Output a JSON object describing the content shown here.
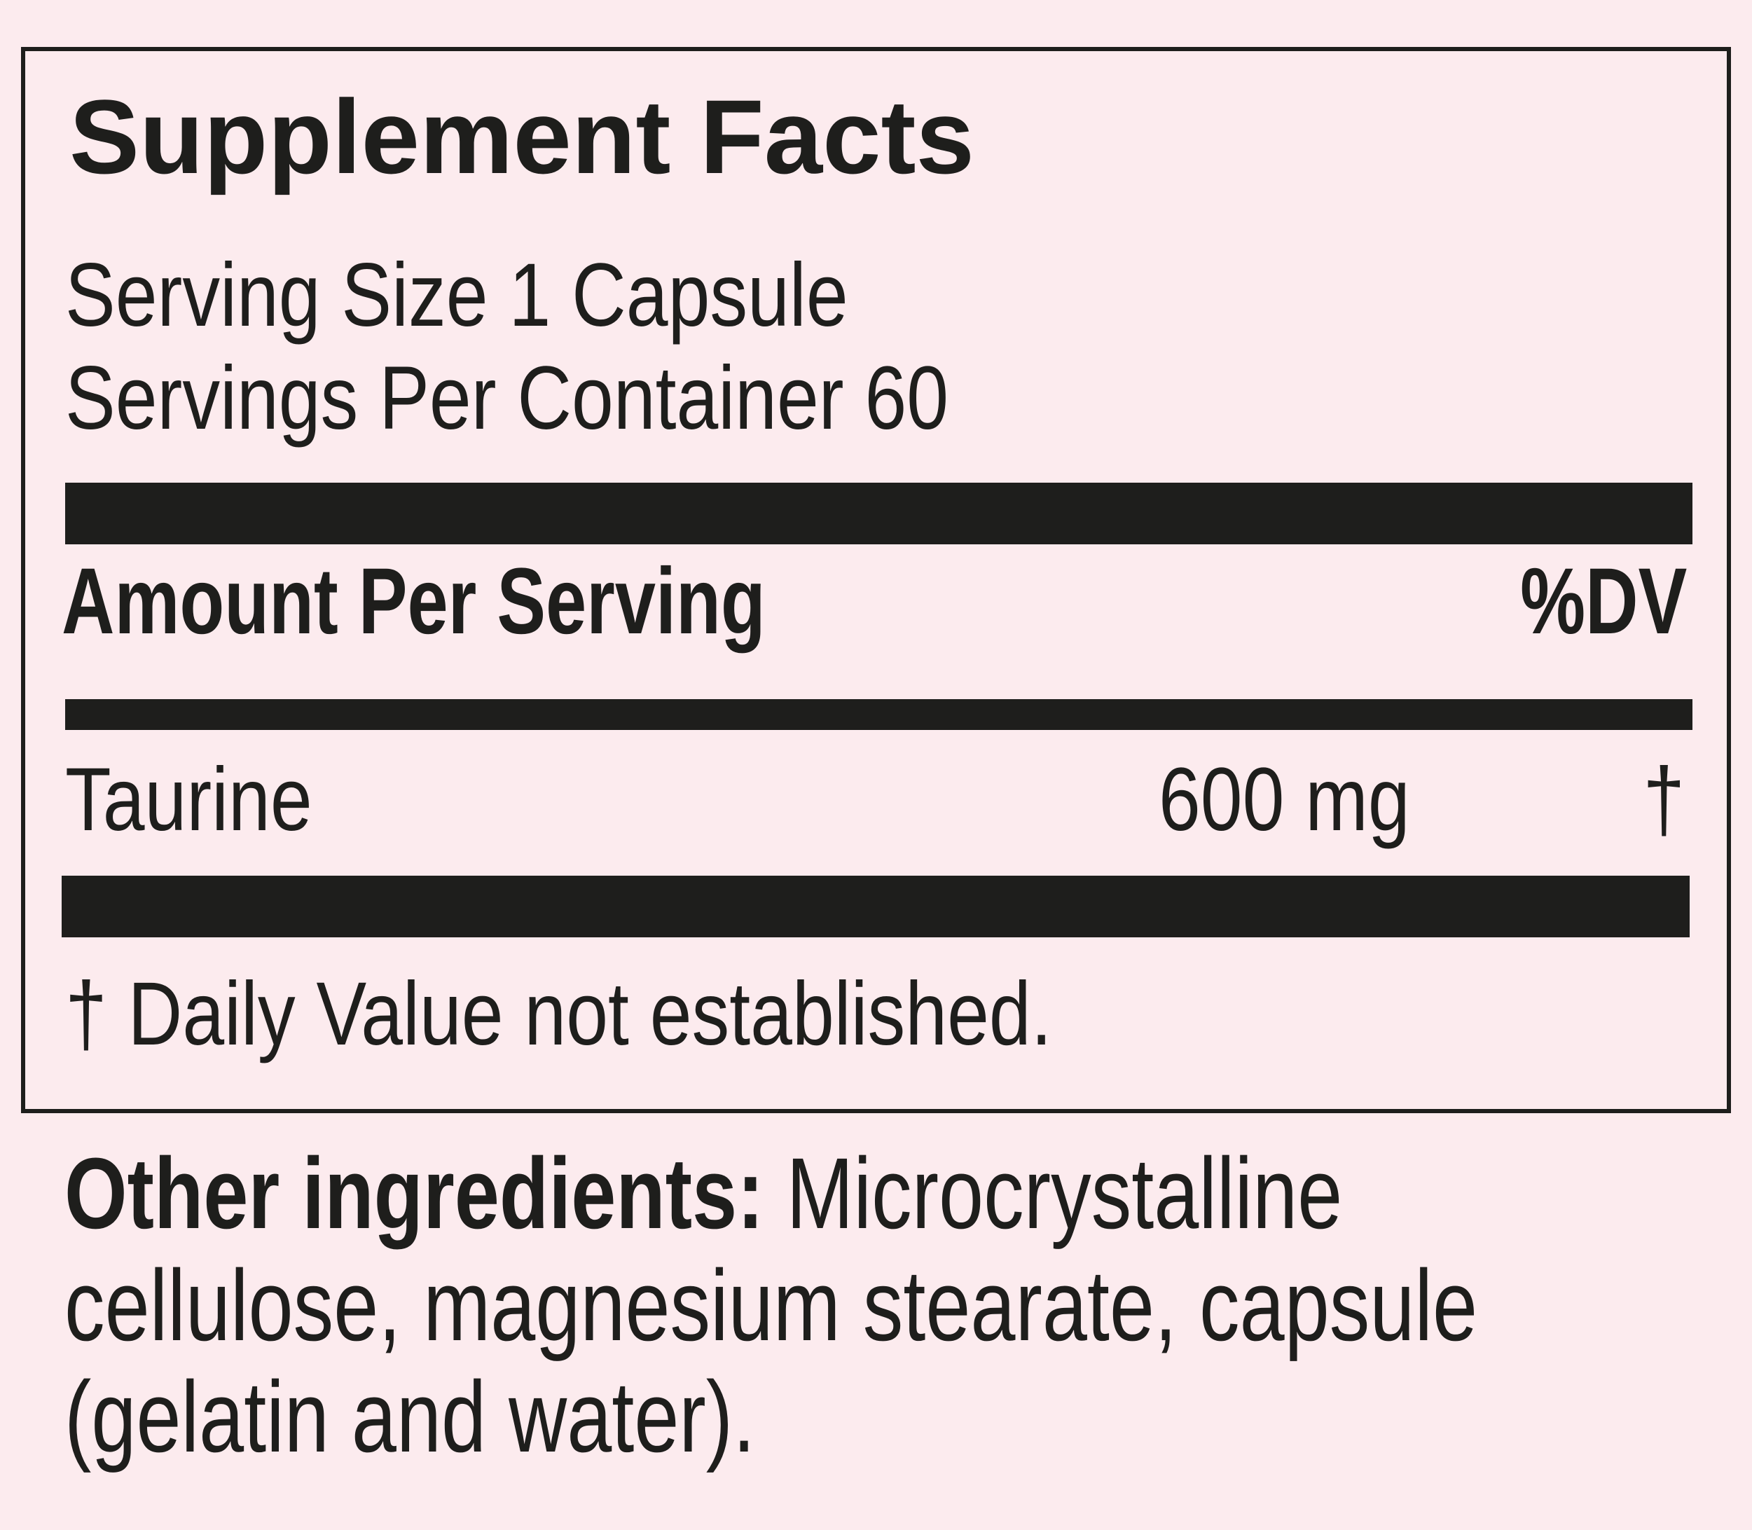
{
  "title": "Supplement Facts",
  "serving_size": "Serving Size 1 Capsule",
  "servings_per_container": "Servings Per Container 60",
  "header": {
    "amount_label": "Amount Per Serving",
    "dv_label": "%DV"
  },
  "ingredients": [
    {
      "name": "Taurine",
      "amount": "600 mg",
      "dv": "†"
    }
  ],
  "footnote": "† Daily Value not established.",
  "other_ingredients": {
    "label": "Other ingredients:",
    "line1": " Microcrystalline",
    "line2": "cellulose, magnesium stearate, capsule",
    "line3": "(gelatin and water)."
  }
}
